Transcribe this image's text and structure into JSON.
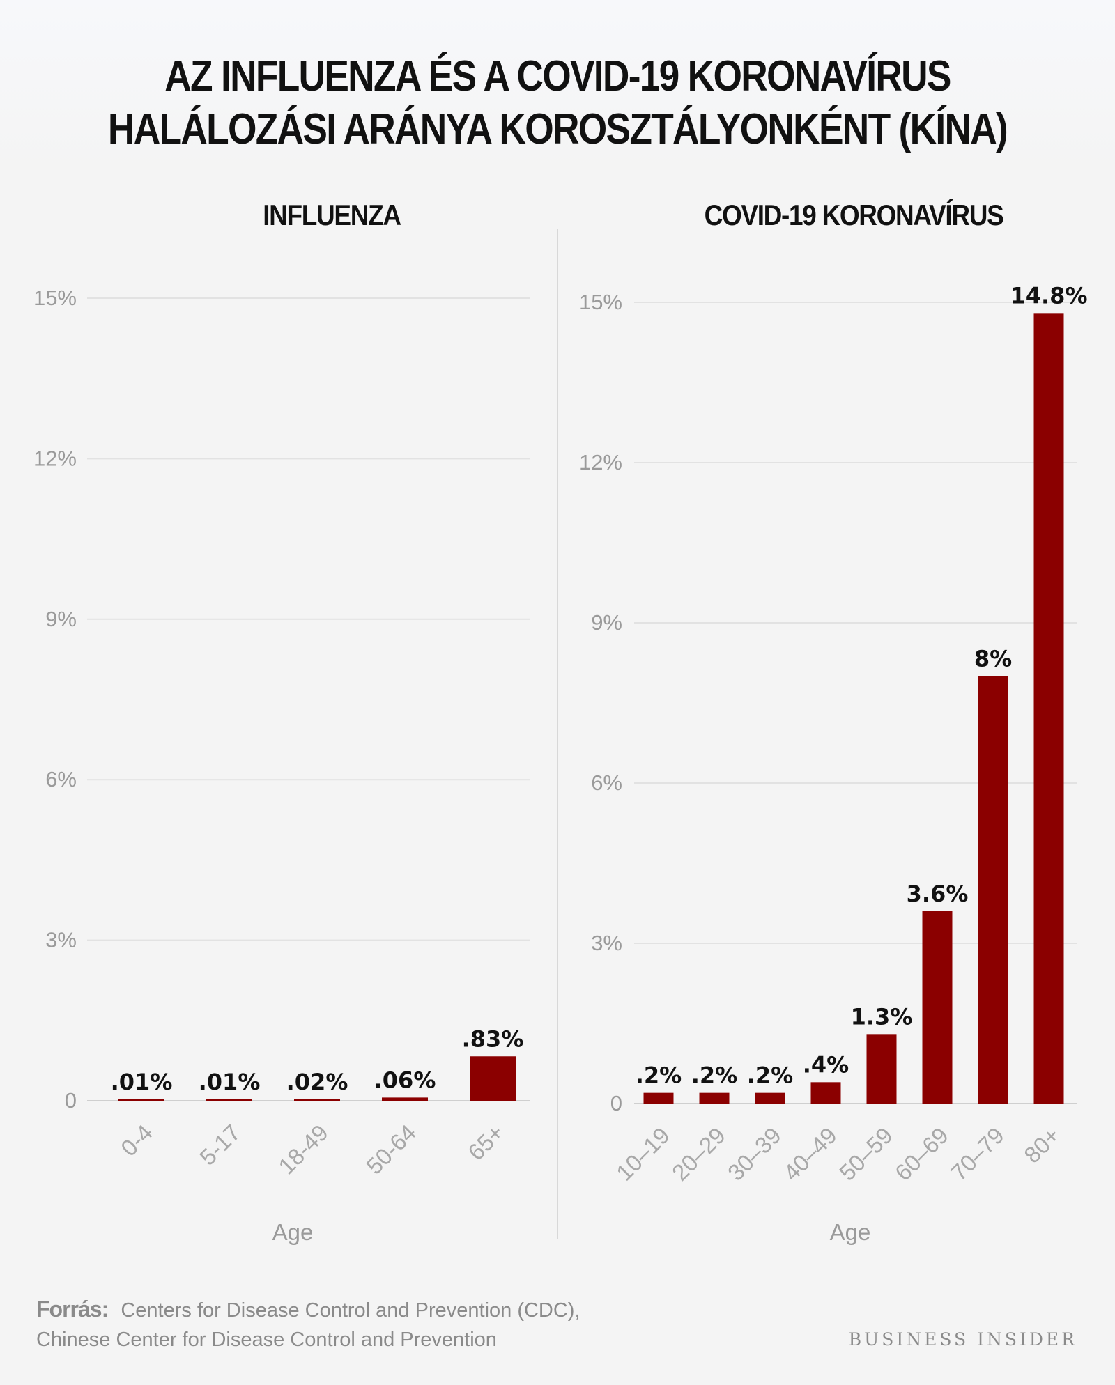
{
  "title": "AZ INFLUENZA ÉS A COVID-19 KORONAVÍRUS HALÁLOZÁSI ARÁNYA KOROSZTÁLYONKÉNT (KÍNA)",
  "chart_data": [
    {
      "type": "bar",
      "title": "INFLUENZA",
      "xlabel": "Age",
      "ylabel": "",
      "ylim": [
        0,
        15
      ],
      "yticks": [
        0,
        3,
        6,
        9,
        12,
        15
      ],
      "ytick_labels": [
        "0",
        "3%",
        "6%",
        "9%",
        "12%",
        "15%"
      ],
      "categories": [
        "0-4",
        "5-17",
        "18-49",
        "50-64",
        "65+"
      ],
      "values": [
        0.01,
        0.01,
        0.02,
        0.06,
        0.83
      ],
      "value_labels": [
        ".01%",
        ".01%",
        ".02%",
        ".06%",
        ".83%"
      ],
      "grid": true,
      "bar_color": "#8b0000"
    },
    {
      "type": "bar",
      "title": "COVID-19 KORONAVÍRUS",
      "xlabel": "Age",
      "ylabel": "",
      "ylim": [
        0,
        15
      ],
      "yticks": [
        0,
        3,
        6,
        9,
        12,
        15
      ],
      "ytick_labels": [
        "0",
        "3%",
        "6%",
        "9%",
        "12%",
        "15%"
      ],
      "categories": [
        "10–19",
        "20–29",
        "30–39",
        "40–49",
        "50–59",
        "60–69",
        "70–79",
        "80+"
      ],
      "values": [
        0.2,
        0.2,
        0.2,
        0.4,
        1.3,
        3.6,
        8,
        14.8
      ],
      "value_labels": [
        ".2%",
        ".2%",
        ".2%",
        ".4%",
        "1.3%",
        "3.6%",
        "8%",
        "14.8%"
      ],
      "grid": true,
      "bar_color": "#8b0000"
    }
  ],
  "source": {
    "label": "Forrás:",
    "line1": "Centers for Disease Control and Prevention (CDC),",
    "line2": "Chinese Center for Disease Control and Prevention"
  },
  "brand": "BUSINESS INSIDER"
}
